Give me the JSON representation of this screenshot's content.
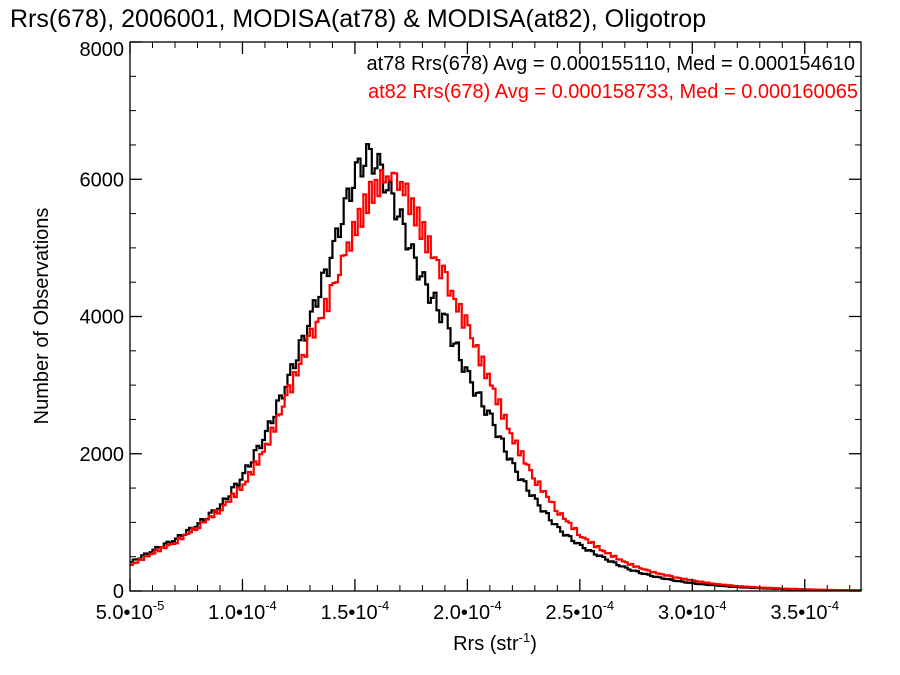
{
  "chart_data": {
    "type": "histogram",
    "title": "Rrs(678), 2006001, MODISA(at78) & MODISA(at82), Oligotrop",
    "xlabel_main": "Rrs (str",
    "xlabel_sup": "-1",
    "xlabel_tail": ")",
    "ylabel": "Number of Observations",
    "xlim": [
      5e-05,
      0.000375
    ],
    "ylim": [
      0,
      8000
    ],
    "x_ticks": [
      {
        "mant": "5.0•10",
        "exp": "-5"
      },
      {
        "mant": "1.0•10",
        "exp": "-4"
      },
      {
        "mant": "1.5•10",
        "exp": "-4"
      },
      {
        "mant": "2.0•10",
        "exp": "-4"
      },
      {
        "mant": "2.5•10",
        "exp": "-4"
      },
      {
        "mant": "3.0•10",
        "exp": "-4"
      },
      {
        "mant": "3.5•10",
        "exp": "-4"
      }
    ],
    "x_tick_values": [
      5e-05,
      0.0001,
      0.00015,
      0.0002,
      0.00025,
      0.0003,
      0.00035
    ],
    "y_ticks": [
      "0",
      "2000",
      "4000",
      "6000",
      "8000"
    ],
    "y_tick_values": [
      0,
      2000,
      4000,
      6000,
      8000
    ],
    "legend": [
      {
        "text": "at78 Rrs(678) Avg = 0.000155110, Med = 0.000154610",
        "color": "#000000"
      },
      {
        "text": "at82 Rrs(678) Avg = 0.000158733, Med = 0.000160065",
        "color": "#ff0000"
      }
    ],
    "legend_placement": "top-right",
    "series": [
      {
        "color": "#000000",
        "points": [
          [
            5e-05,
            420
          ],
          [
            6e-05,
            600
          ],
          [
            7e-05,
            760
          ],
          [
            8e-05,
            980
          ],
          [
            9e-05,
            1250
          ],
          [
            0.0001,
            1700
          ],
          [
            0.00011,
            2300
          ],
          [
            0.00012,
            3100
          ],
          [
            0.00013,
            4000
          ],
          [
            0.00014,
            5000
          ],
          [
            0.000145,
            5600
          ],
          [
            0.00015,
            6100
          ],
          [
            0.000155,
            6350
          ],
          [
            0.00016,
            6200
          ],
          [
            0.000165,
            5800
          ],
          [
            0.00017,
            5400
          ],
          [
            0.000175,
            4900
          ],
          [
            0.00018,
            4500
          ],
          [
            0.00019,
            3900
          ],
          [
            0.0002,
            3100
          ],
          [
            0.00021,
            2500
          ],
          [
            0.00022,
            1800
          ],
          [
            0.00023,
            1300
          ],
          [
            0.00024,
            900
          ],
          [
            0.00025,
            650
          ],
          [
            0.00026,
            480
          ],
          [
            0.00027,
            330
          ],
          [
            0.00028,
            230
          ],
          [
            0.00029,
            160
          ],
          [
            0.0003,
            110
          ],
          [
            0.00031,
            80
          ],
          [
            0.00032,
            55
          ],
          [
            0.00033,
            40
          ],
          [
            0.00034,
            28
          ],
          [
            0.00035,
            20
          ],
          [
            0.00036,
            12
          ],
          [
            0.000375,
            8
          ]
        ]
      },
      {
        "color": "#ff0000",
        "points": [
          [
            5e-05,
            380
          ],
          [
            6e-05,
            560
          ],
          [
            7e-05,
            720
          ],
          [
            8e-05,
            950
          ],
          [
            9e-05,
            1200
          ],
          [
            0.0001,
            1550
          ],
          [
            0.00011,
            2100
          ],
          [
            0.00012,
            2900
          ],
          [
            0.00013,
            3700
          ],
          [
            0.00014,
            4400
          ],
          [
            0.000145,
            4900
          ],
          [
            0.00015,
            5300
          ],
          [
            0.000155,
            5700
          ],
          [
            0.00016,
            5950
          ],
          [
            0.000165,
            6100
          ],
          [
            0.00017,
            5950
          ],
          [
            0.000175,
            5600
          ],
          [
            0.00018,
            5200
          ],
          [
            0.00019,
            4500
          ],
          [
            0.0002,
            3800
          ],
          [
            0.00021,
            3000
          ],
          [
            0.00022,
            2200
          ],
          [
            0.00023,
            1600
          ],
          [
            0.00024,
            1150
          ],
          [
            0.00025,
            800
          ],
          [
            0.00026,
            580
          ],
          [
            0.00027,
            410
          ],
          [
            0.00028,
            290
          ],
          [
            0.00029,
            210
          ],
          [
            0.0003,
            150
          ],
          [
            0.00031,
            100
          ],
          [
            0.00032,
            70
          ],
          [
            0.00033,
            50
          ],
          [
            0.00034,
            35
          ],
          [
            0.00035,
            25
          ],
          [
            0.00036,
            15
          ],
          [
            0.000375,
            10
          ]
        ]
      }
    ]
  }
}
